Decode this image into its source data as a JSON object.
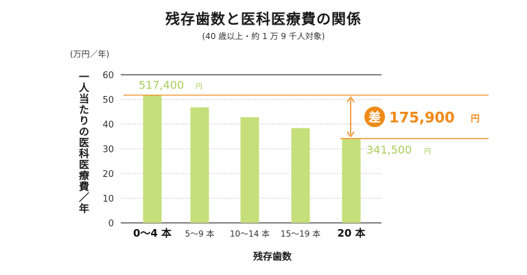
{
  "chart_data": {
    "type": "bar",
    "title": "残存歯数と医科医療費の関係",
    "subtitle": "(40 歳以上・約 1 万 9 千人対象)",
    "unit": "(万円／年)",
    "ylabel": "一人当たりの医科医療費／年",
    "xlabel": "残存歯数",
    "categories": [
      "0～4 本",
      "5～9 本",
      "10～14 本",
      "15～19 本",
      "20 本"
    ],
    "bold_categories": [
      0,
      4
    ],
    "values": [
      51.74,
      46.8,
      42.8,
      38.4,
      34.15
    ],
    "ylim": [
      0,
      60
    ],
    "yticks": [
      0,
      10,
      20,
      30,
      40,
      50,
      60
    ],
    "bar_color": "#c5df7a",
    "accent_color": "#ee8a1a",
    "annotations": [
      {
        "label": "517,400",
        "unit": "円"
      },
      {
        "label": "341,500",
        "unit": "円"
      }
    ],
    "difference": {
      "badge": "差",
      "label": "175,900",
      "unit": "円"
    }
  }
}
